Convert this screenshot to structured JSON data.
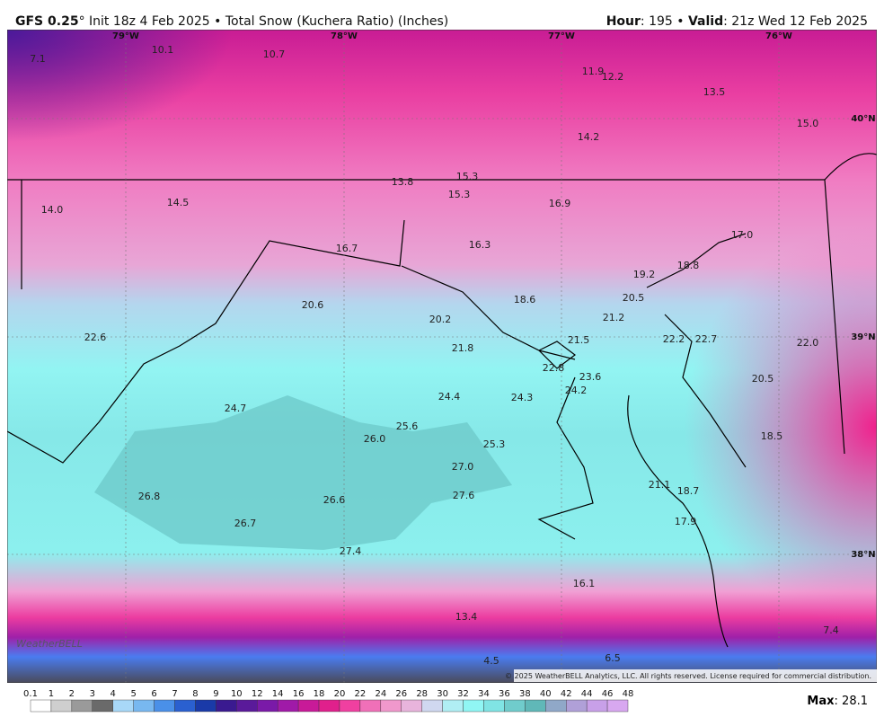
{
  "header": {
    "model": "GFS 0.25",
    "title_rest": "° Init 18z 4 Feb 2025 • Total Snow (Kuchera Ratio) (Inches)",
    "hour_label": "Hour",
    "hour_rest": ": 195 • ",
    "valid_label": "Valid",
    "valid_rest": ": 21z Wed 12 Feb 2025"
  },
  "map": {
    "value_labels": [
      "7.1",
      "10.1",
      "10.7",
      "11.9",
      "12.2",
      "13.5",
      "15.0",
      "14.2",
      "13.8",
      "15.3",
      "15.3",
      "16.9",
      "14.0",
      "14.5",
      "16.7",
      "16.3",
      "17.0",
      "19.2",
      "18.8",
      "20.5",
      "18.6",
      "20.6",
      "20.2",
      "21.2",
      "22.6",
      "21.8",
      "21.5",
      "22.2",
      "22.7",
      "22.0",
      "22.8",
      "23.6",
      "20.5",
      "24.2",
      "24.4",
      "24.3",
      "24.7",
      "25.6",
      "26.0",
      "18.5",
      "25.3",
      "27.0",
      "21.1",
      "18.7",
      "26.8",
      "27.6",
      "26.6",
      "17.9",
      "26.7",
      "27.4",
      "16.1",
      "13.4",
      "7.4",
      "4.5",
      "6.5"
    ],
    "lon_labels": [
      "79°W",
      "78°W",
      "77°W",
      "76°W"
    ],
    "lat_labels": [
      "40°N",
      "39°N",
      "38°N"
    ],
    "logo": "WeatherBELL",
    "copyright": "© 2025 WeatherBELL Analytics, LLC. All rights reserved. License required for commercial distribution."
  },
  "colorbar": {
    "ticks": [
      0.1,
      1,
      2,
      3,
      4,
      5,
      6,
      7,
      8,
      9,
      10,
      12,
      14,
      16,
      18,
      20,
      22,
      24,
      26,
      28,
      30,
      32,
      34,
      36,
      38,
      40,
      42,
      44,
      46,
      48
    ]
  },
  "footer": {
    "max_label": "Max",
    "max_rest": ": 28.1"
  }
}
